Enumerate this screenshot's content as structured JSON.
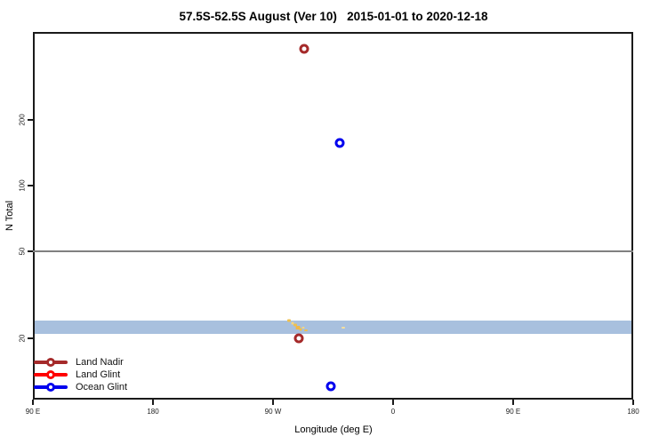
{
  "title": "57.5S-52.5S August (Ver 10)   2015-01-01 to 2020-12-18",
  "axes": {
    "x": {
      "label": "Longitude (deg E)",
      "range_deg": [
        90,
        540
      ],
      "ticks": [
        {
          "deg": 90,
          "label": "90 E"
        },
        {
          "deg": 180,
          "label": "180"
        },
        {
          "deg": 270,
          "label": "90 W"
        },
        {
          "deg": 360,
          "label": "0"
        },
        {
          "deg": 450,
          "label": "90 E"
        },
        {
          "deg": 540,
          "label": "180"
        }
      ]
    },
    "y": {
      "label": "N Total",
      "scale": "log",
      "range": [
        10.5,
        505
      ],
      "ticks": [
        {
          "value": 200,
          "label": "200"
        },
        {
          "value": 100,
          "label": "100"
        },
        {
          "value": 50,
          "label": "50"
        },
        {
          "value": 20,
          "label": "20"
        }
      ]
    }
  },
  "legend": {
    "items": [
      {
        "name": "land-nadir",
        "label": "Land Nadir",
        "color": "#A52A2A"
      },
      {
        "name": "land-glint",
        "label": "Land Glint",
        "color": "#FF0000"
      },
      {
        "name": "ocean-glint",
        "label": "Ocean Glint",
        "color": "#0000EE"
      }
    ]
  },
  "chart_data": {
    "type": "scatter",
    "title": "57.5S-52.5S August (Ver 10)   2015-01-01 to 2020-12-18",
    "xlabel": "Longitude (deg E)",
    "ylabel": "N Total",
    "x_axis_deg": [
      90,
      180,
      270,
      360,
      450,
      540
    ],
    "x_tick_labels": [
      "90 E",
      "180",
      "90 W",
      "0",
      "90 E",
      "180"
    ],
    "y_scale": "log",
    "y_ticks": [
      20,
      50,
      100,
      200
    ],
    "ylim": [
      10.5,
      505
    ],
    "gridline_y": 50,
    "grid_color": "#808080",
    "band": {
      "y_from": 21,
      "y_to": 24,
      "color": "#A8C0DE"
    },
    "series": [
      {
        "name": "Land Nadir",
        "color": "#A52A2A",
        "points": [
          {
            "lon": 293,
            "n": 425
          },
          {
            "lon": 289,
            "n": 20
          }
        ]
      },
      {
        "name": "Land Glint",
        "color": "#FF0000",
        "points": []
      },
      {
        "name": "Ocean Glint",
        "color": "#0000EE",
        "points": [
          {
            "lon": 320,
            "n": 157
          },
          {
            "lon": 313,
            "n": 12
          }
        ]
      }
    ],
    "small_marks": [
      {
        "lon": 282.0,
        "n": 24.0,
        "color": "#EEC050",
        "w": 4,
        "h": 3
      },
      {
        "lon": 284.5,
        "n": 23.5,
        "color": "#F5D580",
        "w": 3,
        "h": 3
      },
      {
        "lon": 286.5,
        "n": 23.0,
        "color": "#EEC050",
        "w": 4,
        "h": 3
      },
      {
        "lon": 288.5,
        "n": 22.4,
        "color": "#F0B84A",
        "w": 5,
        "h": 4
      },
      {
        "lon": 290.5,
        "n": 22.0,
        "color": "#EEC050",
        "w": 3,
        "h": 3
      },
      {
        "lon": 292.5,
        "n": 22.4,
        "color": "#F5D580",
        "w": 3,
        "h": 2
      },
      {
        "lon": 294.5,
        "n": 21.8,
        "color": "#EEC050",
        "w": 4,
        "h": 2
      },
      {
        "lon": 322.5,
        "n": 22.4,
        "color": "#F7DF9C",
        "w": 4,
        "h": 2
      }
    ],
    "marker_style": "open-circle"
  }
}
